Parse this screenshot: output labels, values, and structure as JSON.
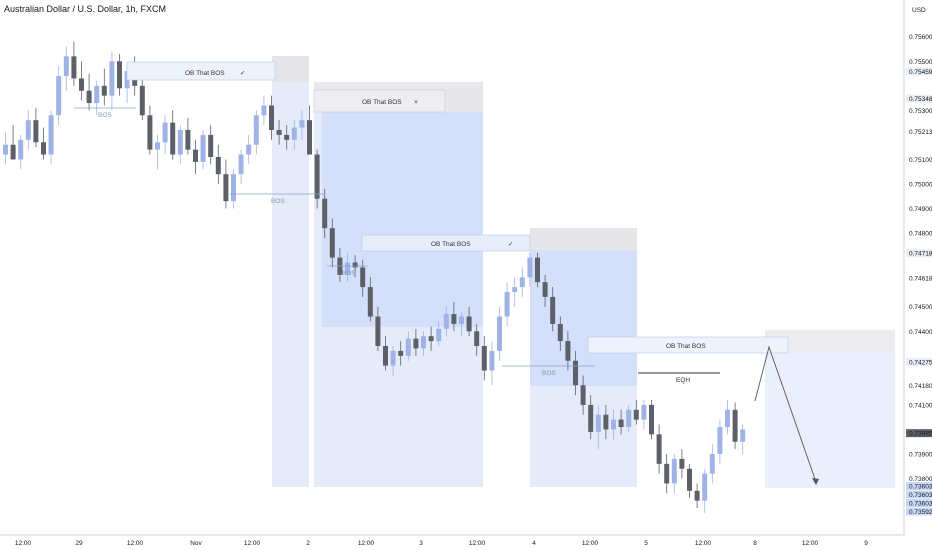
{
  "title": "Australian Dollar / U.S. Dollar, 1h, FXCM",
  "currency": "USD",
  "colors": {
    "up": "#9fb3e6",
    "down": "#5d6068",
    "zone": "#c9d8f7",
    "bg": "#ffffff"
  },
  "chart_data": {
    "type": "candlestick",
    "ylim": [
      0.7357,
      0.7566
    ],
    "price_ticks": [
      "0.75600",
      "0.75500",
      "0.75300",
      "0.75100",
      "0.75000",
      "0.74900",
      "0.74800",
      "0.74500",
      "0.74400",
      "0.74100",
      "0.73900",
      "0.73800",
      "0.73700"
    ],
    "price_highlights": [
      {
        "value": "0.75459",
        "bg": "#e9edf5"
      },
      {
        "value": "0.75348",
        "bg": "#e9edf5"
      },
      {
        "value": "0.75213",
        "bg": "#ffffff"
      },
      {
        "value": "0.74718",
        "bg": "#e9edf5"
      },
      {
        "value": "0.74618",
        "bg": "#ffffff"
      },
      {
        "value": "0.74275",
        "bg": "#e9edf5"
      },
      {
        "value": "0.74180",
        "bg": "#ffffff"
      },
      {
        "value": "0.73985",
        "bg": "#5d6068"
      },
      {
        "value": "0.73603",
        "bg": "#c9d8f7"
      },
      {
        "value": "0.73603",
        "bg": "#c9d8f7"
      },
      {
        "value": "0.73603",
        "bg": "#c9d8f7"
      },
      {
        "value": "0.73592",
        "bg": "#c9d8f7"
      }
    ],
    "x_ticks": [
      "12:00",
      "29",
      "12:00",
      "Nov",
      "12:00",
      "2",
      "12:00",
      "3",
      "12:00",
      "4",
      "12:00",
      "5",
      "12:00",
      "8",
      "12:00",
      "9"
    ],
    "annotations": {
      "ob1": "OB That BOS",
      "ob2": "OB That BOS",
      "ob3": "OB That BOS",
      "ob4": "OB That BOS",
      "bos1": "BOS",
      "bos2": "BOS",
      "bos3": "BOS",
      "bos4": "BOS",
      "eqh": "EQH",
      "check1": "✓",
      "cross2": "×",
      "check3": "✓"
    },
    "candles": [
      [
        0.7512,
        0.7521,
        0.7508,
        0.7516
      ],
      [
        0.7516,
        0.7524,
        0.7511,
        0.751
      ],
      [
        0.751,
        0.752,
        0.7506,
        0.7518
      ],
      [
        0.7518,
        0.753,
        0.7514,
        0.7526
      ],
      [
        0.7526,
        0.7531,
        0.7515,
        0.7517
      ],
      [
        0.7517,
        0.7523,
        0.751,
        0.7512
      ],
      [
        0.7512,
        0.753,
        0.7508,
        0.7528
      ],
      [
        0.7528,
        0.7548,
        0.7524,
        0.7544
      ],
      [
        0.7544,
        0.7556,
        0.7538,
        0.7552
      ],
      [
        0.7552,
        0.7558,
        0.754,
        0.7543
      ],
      [
        0.7543,
        0.755,
        0.7534,
        0.7538
      ],
      [
        0.7538,
        0.7545,
        0.753,
        0.7533
      ],
      [
        0.7533,
        0.7542,
        0.7528,
        0.754
      ],
      [
        0.754,
        0.7547,
        0.7532,
        0.7536
      ],
      [
        0.7536,
        0.7554,
        0.753,
        0.755
      ],
      [
        0.755,
        0.7553,
        0.7536,
        0.7539
      ],
      [
        0.7539,
        0.7548,
        0.7533,
        0.7546
      ],
      [
        0.7546,
        0.7552,
        0.7536,
        0.754
      ],
      [
        0.754,
        0.7545,
        0.7526,
        0.7528
      ],
      [
        0.7528,
        0.7532,
        0.7512,
        0.7514
      ],
      [
        0.7514,
        0.752,
        0.7506,
        0.7517
      ],
      [
        0.7517,
        0.7528,
        0.7512,
        0.7525
      ],
      [
        0.7525,
        0.753,
        0.751,
        0.7512
      ],
      [
        0.7512,
        0.7524,
        0.7508,
        0.7522
      ],
      [
        0.7522,
        0.7527,
        0.7512,
        0.7514
      ],
      [
        0.7514,
        0.7518,
        0.7504,
        0.7509
      ],
      [
        0.7509,
        0.7522,
        0.7506,
        0.752
      ],
      [
        0.752,
        0.7524,
        0.7508,
        0.7511
      ],
      [
        0.7511,
        0.7516,
        0.75,
        0.7504
      ],
      [
        0.7504,
        0.751,
        0.749,
        0.7493
      ],
      [
        0.7493,
        0.7506,
        0.749,
        0.7504
      ],
      [
        0.7504,
        0.7514,
        0.75,
        0.7512
      ],
      [
        0.7512,
        0.752,
        0.7508,
        0.7516
      ],
      [
        0.7516,
        0.753,
        0.7512,
        0.7528
      ],
      [
        0.7528,
        0.7536,
        0.7524,
        0.7532
      ],
      [
        0.7532,
        0.7536,
        0.7518,
        0.7522
      ],
      [
        0.7522,
        0.7526,
        0.7516,
        0.752
      ],
      [
        0.752,
        0.7524,
        0.7514,
        0.7518
      ],
      [
        0.7518,
        0.7526,
        0.7514,
        0.7523
      ],
      [
        0.7523,
        0.753,
        0.7518,
        0.7526
      ],
      [
        0.7526,
        0.7532,
        0.7512,
        0.7512
      ],
      [
        0.7512,
        0.7514,
        0.749,
        0.7494
      ],
      [
        0.7494,
        0.7498,
        0.7478,
        0.7482
      ],
      [
        0.7482,
        0.7486,
        0.7466,
        0.747
      ],
      [
        0.747,
        0.7474,
        0.746,
        0.7463
      ],
      [
        0.7463,
        0.7472,
        0.746,
        0.7468
      ],
      [
        0.7468,
        0.7471,
        0.7462,
        0.7466
      ],
      [
        0.7466,
        0.7469,
        0.7454,
        0.7458
      ],
      [
        0.7458,
        0.7462,
        0.7444,
        0.7446
      ],
      [
        0.7446,
        0.745,
        0.7432,
        0.7434
      ],
      [
        0.7434,
        0.7438,
        0.7424,
        0.7426
      ],
      [
        0.7426,
        0.7434,
        0.7422,
        0.7432
      ],
      [
        0.7432,
        0.7436,
        0.7426,
        0.743
      ],
      [
        0.743,
        0.744,
        0.7428,
        0.7437
      ],
      [
        0.7437,
        0.7441,
        0.743,
        0.7433
      ],
      [
        0.7433,
        0.744,
        0.743,
        0.7438
      ],
      [
        0.7438,
        0.7442,
        0.7432,
        0.7436
      ],
      [
        0.7436,
        0.7444,
        0.7434,
        0.7441
      ],
      [
        0.7441,
        0.745,
        0.7438,
        0.7447
      ],
      [
        0.7447,
        0.7452,
        0.744,
        0.7443
      ],
      [
        0.7443,
        0.7448,
        0.7438,
        0.7446
      ],
      [
        0.7446,
        0.745,
        0.7438,
        0.744
      ],
      [
        0.744,
        0.7443,
        0.743,
        0.7434
      ],
      [
        0.7434,
        0.7438,
        0.742,
        0.7424
      ],
      [
        0.7424,
        0.7436,
        0.7418,
        0.7432
      ],
      [
        0.7432,
        0.745,
        0.7428,
        0.7446
      ],
      [
        0.7446,
        0.746,
        0.7442,
        0.7456
      ],
      [
        0.7456,
        0.7462,
        0.745,
        0.7458
      ],
      [
        0.7458,
        0.7466,
        0.7454,
        0.7462
      ],
      [
        0.7462,
        0.7472,
        0.7458,
        0.747
      ],
      [
        0.747,
        0.7472,
        0.7458,
        0.746
      ],
      [
        0.746,
        0.7463,
        0.745,
        0.7454
      ],
      [
        0.7454,
        0.7458,
        0.744,
        0.7443
      ],
      [
        0.7443,
        0.7446,
        0.7432,
        0.7436
      ],
      [
        0.7436,
        0.744,
        0.7424,
        0.7428
      ],
      [
        0.7428,
        0.7432,
        0.7414,
        0.7418
      ],
      [
        0.7418,
        0.7422,
        0.7406,
        0.741
      ],
      [
        0.741,
        0.7414,
        0.7396,
        0.7399
      ],
      [
        0.7399,
        0.741,
        0.7392,
        0.7406
      ],
      [
        0.7406,
        0.741,
        0.7396,
        0.74
      ],
      [
        0.74,
        0.7408,
        0.7396,
        0.7404
      ],
      [
        0.7404,
        0.7408,
        0.7398,
        0.7401
      ],
      [
        0.7401,
        0.741,
        0.7399,
        0.7408
      ],
      [
        0.7408,
        0.7412,
        0.7402,
        0.7404
      ],
      [
        0.7404,
        0.7412,
        0.74,
        0.741
      ],
      [
        0.741,
        0.7412,
        0.7396,
        0.7398
      ],
      [
        0.7398,
        0.7402,
        0.7382,
        0.7386
      ],
      [
        0.7386,
        0.739,
        0.7374,
        0.7378
      ],
      [
        0.7378,
        0.739,
        0.7374,
        0.7388
      ],
      [
        0.7388,
        0.7392,
        0.738,
        0.7384
      ],
      [
        0.7384,
        0.7386,
        0.7372,
        0.7375
      ],
      [
        0.7375,
        0.7378,
        0.7368,
        0.7371
      ],
      [
        0.7371,
        0.7384,
        0.7366,
        0.7382
      ],
      [
        0.7382,
        0.7394,
        0.7378,
        0.739
      ],
      [
        0.739,
        0.7404,
        0.7386,
        0.7401
      ],
      [
        0.7401,
        0.7412,
        0.7398,
        0.7408
      ],
      [
        0.7408,
        0.7411,
        0.7392,
        0.7395
      ],
      [
        0.7395,
        0.7402,
        0.739,
        0.74
      ]
    ]
  }
}
